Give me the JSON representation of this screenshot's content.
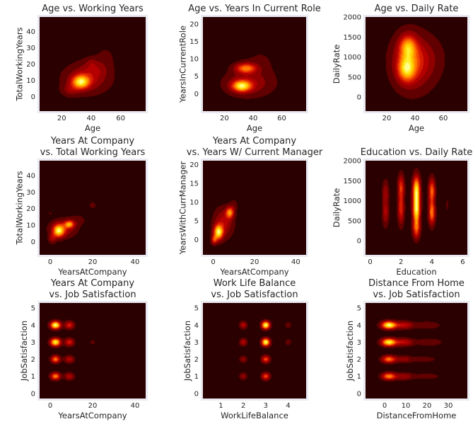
{
  "chart_data": [
    {
      "type": "heatmap",
      "title_lines": [
        "Age vs. Working Years"
      ],
      "xlabel": "Age",
      "ylabel": "TotalWorkingYears",
      "xlim": [
        5,
        77
      ],
      "ylim": [
        -9,
        49
      ],
      "xticks": [
        20,
        40,
        60
      ],
      "yticks": [
        0,
        10,
        20,
        30,
        40
      ],
      "blobs": [
        {
          "x": 33,
          "y": 9,
          "sx": 4,
          "sy": 2.8,
          "w": 1.0
        },
        {
          "x": 37,
          "y": 11,
          "sx": 10,
          "sy": 6,
          "w": 0.35
        },
        {
          "x": 43,
          "y": 17,
          "sx": 6,
          "sy": 4,
          "w": 0.18
        },
        {
          "x": 40,
          "y": 21,
          "sx": 2.5,
          "sy": 2,
          "w": 0.12
        },
        {
          "x": 50,
          "y": 25,
          "sx": 5,
          "sy": 5,
          "w": 0.08
        },
        {
          "x": 26,
          "y": 4,
          "sx": 4,
          "sy": 2.5,
          "w": 0.22
        }
      ]
    },
    {
      "type": "heatmap",
      "title_lines": [
        "Age vs. Years In Current Role"
      ],
      "xlabel": "Age",
      "ylabel": "YearsInCurrentRole",
      "xlim": [
        5,
        77
      ],
      "ylim": [
        -5,
        22
      ],
      "xticks": [
        20,
        40,
        60
      ],
      "yticks": [
        0,
        5,
        10,
        15,
        20
      ],
      "blobs": [
        {
          "x": 32,
          "y": 2.2,
          "sx": 4.5,
          "sy": 1.1,
          "w": 1.0
        },
        {
          "x": 35,
          "y": 7.3,
          "sx": 5,
          "sy": 1.0,
          "w": 0.72
        },
        {
          "x": 37,
          "y": 3,
          "sx": 11,
          "sy": 2.5,
          "w": 0.3
        },
        {
          "x": 45,
          "y": 9,
          "sx": 8,
          "sy": 3,
          "w": 0.08
        }
      ]
    },
    {
      "type": "heatmap",
      "title_lines": [
        "Age vs. Daily Rate"
      ],
      "xlabel": "Age",
      "ylabel": "DailyRate",
      "xlim": [
        5,
        77
      ],
      "ylim": [
        -350,
        2000
      ],
      "xticks": [
        20,
        40,
        60
      ],
      "yticks": [
        0,
        500,
        1000,
        1500,
        2000
      ],
      "blobs": [
        {
          "x": 34,
          "y": 700,
          "sx": 4,
          "sy": 200,
          "w": 1.0
        },
        {
          "x": 35,
          "y": 1250,
          "sx": 4,
          "sy": 200,
          "w": 0.9
        },
        {
          "x": 36,
          "y": 900,
          "sx": 8,
          "sy": 420,
          "w": 0.6
        },
        {
          "x": 42,
          "y": 800,
          "sx": 10,
          "sy": 450,
          "w": 0.25
        },
        {
          "x": 50,
          "y": 1000,
          "sx": 8,
          "sy": 350,
          "w": 0.12
        }
      ]
    },
    {
      "type": "heatmap",
      "title_lines": [
        "Years At Company",
        "vs. Total Working Years"
      ],
      "xlabel": "YearsAtCompany",
      "ylabel": "TotalWorkingYears",
      "xlim": [
        -5,
        45
      ],
      "ylim": [
        -8,
        49
      ],
      "xticks": [
        0,
        20,
        40
      ],
      "yticks": [
        0,
        10,
        20,
        30,
        40
      ],
      "blobs": [
        {
          "x": 4,
          "y": 6.5,
          "sx": 1.8,
          "sy": 2.5,
          "w": 1.0
        },
        {
          "x": 9,
          "y": 10.5,
          "sx": 1.6,
          "sy": 1.5,
          "w": 0.75
        },
        {
          "x": 6,
          "y": 8,
          "sx": 4,
          "sy": 3.5,
          "w": 0.35
        },
        {
          "x": 1,
          "y": 2,
          "sx": 1.2,
          "sy": 2,
          "w": 0.3
        },
        {
          "x": 20,
          "y": 22,
          "sx": 1.2,
          "sy": 1.3,
          "w": 0.14
        },
        {
          "x": 0,
          "y": 17,
          "sx": 0.8,
          "sy": 0.8,
          "w": 0.08
        },
        {
          "x": 13,
          "y": 13,
          "sx": 3,
          "sy": 2.5,
          "w": 0.1
        }
      ]
    },
    {
      "type": "heatmap",
      "title_lines": [
        "Years At Company",
        "vs. Years W/ Current Manager"
      ],
      "xlabel": "YearsAtCompany",
      "ylabel": "YearsWithCurrManager",
      "xlim": [
        -5,
        45
      ],
      "ylim": [
        -4,
        21
      ],
      "xticks": [
        0,
        20,
        40
      ],
      "yticks": [
        0,
        5,
        10,
        15,
        20
      ],
      "blobs": [
        {
          "x": 2.5,
          "y": 2,
          "sx": 1.5,
          "sy": 1.3,
          "w": 1.0
        },
        {
          "x": 8,
          "y": 7.2,
          "sx": 1.3,
          "sy": 1.0,
          "w": 0.7
        },
        {
          "x": 5,
          "y": 4.5,
          "sx": 3,
          "sy": 2.5,
          "w": 0.35
        },
        {
          "x": 0.5,
          "y": 0,
          "sx": 1,
          "sy": 0.8,
          "w": 0.5
        },
        {
          "x": 10,
          "y": 9,
          "sx": 1.2,
          "sy": 1.2,
          "w": 0.12
        }
      ]
    },
    {
      "type": "heatmap",
      "title_lines": [
        "Education vs. Daily Rate"
      ],
      "xlabel": "Education",
      "ylabel": "DailyRate",
      "xlim": [
        -0.3,
        6.3
      ],
      "ylim": [
        -350,
        2000
      ],
      "xticks": [
        0,
        2,
        4,
        6
      ],
      "yticks": [
        0,
        500,
        1000,
        1500,
        2000
      ],
      "blobs": [
        {
          "x": 3,
          "y": 800,
          "sx": 0.16,
          "sy": 250,
          "w": 1.0
        },
        {
          "x": 3,
          "y": 1300,
          "sx": 0.16,
          "sy": 220,
          "w": 0.85
        },
        {
          "x": 3,
          "y": 300,
          "sx": 0.16,
          "sy": 170,
          "w": 0.5
        },
        {
          "x": 4,
          "y": 700,
          "sx": 0.14,
          "sy": 200,
          "w": 0.65
        },
        {
          "x": 4,
          "y": 1250,
          "sx": 0.14,
          "sy": 200,
          "w": 0.6
        },
        {
          "x": 2,
          "y": 800,
          "sx": 0.14,
          "sy": 260,
          "w": 0.45
        },
        {
          "x": 2,
          "y": 1350,
          "sx": 0.14,
          "sy": 200,
          "w": 0.45
        },
        {
          "x": 1,
          "y": 700,
          "sx": 0.14,
          "sy": 220,
          "w": 0.28
        },
        {
          "x": 1,
          "y": 1200,
          "sx": 0.14,
          "sy": 200,
          "w": 0.25
        },
        {
          "x": 5,
          "y": 900,
          "sx": 0.12,
          "sy": 280,
          "w": 0.06
        }
      ]
    },
    {
      "type": "heatmap",
      "title_lines": [
        "Years At Company",
        "vs. Job Satisfaction"
      ],
      "xlabel": "YearsAtCompany",
      "ylabel": "JobSatisfaction",
      "xlim": [
        -5,
        45
      ],
      "ylim": [
        -0.3,
        5.3
      ],
      "xticks": [
        0,
        20,
        40
      ],
      "yticks": [
        0,
        1,
        2,
        3,
        4,
        5
      ],
      "blobs": [
        {
          "x": 2.5,
          "y": 4,
          "sx": 1.6,
          "sy": 0.15,
          "w": 1.0
        },
        {
          "x": 2.5,
          "y": 3,
          "sx": 1.6,
          "sy": 0.15,
          "w": 0.95
        },
        {
          "x": 2.5,
          "y": 2,
          "sx": 1.4,
          "sy": 0.14,
          "w": 0.6
        },
        {
          "x": 2.5,
          "y": 1,
          "sx": 1.5,
          "sy": 0.14,
          "w": 0.65
        },
        {
          "x": 9,
          "y": 4,
          "sx": 1.5,
          "sy": 0.15,
          "w": 0.4
        },
        {
          "x": 9,
          "y": 3,
          "sx": 1.5,
          "sy": 0.15,
          "w": 0.4
        },
        {
          "x": 9,
          "y": 2,
          "sx": 1.5,
          "sy": 0.14,
          "w": 0.3
        },
        {
          "x": 9,
          "y": 1,
          "sx": 1.5,
          "sy": 0.14,
          "w": 0.3
        },
        {
          "x": 20,
          "y": 3,
          "sx": 1,
          "sy": 0.12,
          "w": 0.08
        },
        {
          "x": 21,
          "y": 4,
          "sx": 0.6,
          "sy": 0.1,
          "w": 0.04
        }
      ]
    },
    {
      "type": "heatmap",
      "title_lines": [
        "Work Life Balance",
        "vs. Job Satisfaction"
      ],
      "xlabel": "WorkLifeBalance",
      "ylabel": "JobSatisfaction",
      "xlim": [
        0.2,
        4.8
      ],
      "ylim": [
        -0.3,
        5.3
      ],
      "xticks": [
        1,
        2,
        3,
        4
      ],
      "yticks": [
        0,
        1,
        2,
        3,
        4,
        5
      ],
      "blobs": [
        {
          "x": 3,
          "y": 4,
          "sx": 0.12,
          "sy": 0.15,
          "w": 1.0
        },
        {
          "x": 3,
          "y": 3,
          "sx": 0.12,
          "sy": 0.15,
          "w": 1.0
        },
        {
          "x": 3,
          "y": 2,
          "sx": 0.12,
          "sy": 0.14,
          "w": 0.5
        },
        {
          "x": 3,
          "y": 1,
          "sx": 0.12,
          "sy": 0.14,
          "w": 0.5
        },
        {
          "x": 2,
          "y": 4,
          "sx": 0.11,
          "sy": 0.14,
          "w": 0.3
        },
        {
          "x": 2,
          "y": 3,
          "sx": 0.11,
          "sy": 0.14,
          "w": 0.3
        },
        {
          "x": 2,
          "y": 2,
          "sx": 0.11,
          "sy": 0.13,
          "w": 0.2
        },
        {
          "x": 2,
          "y": 1,
          "sx": 0.11,
          "sy": 0.13,
          "w": 0.22
        },
        {
          "x": 4,
          "y": 4,
          "sx": 0.1,
          "sy": 0.13,
          "w": 0.12
        },
        {
          "x": 4,
          "y": 3,
          "sx": 0.1,
          "sy": 0.13,
          "w": 0.12
        },
        {
          "x": 4,
          "y": 1,
          "sx": 0.05,
          "sy": 0.07,
          "w": 0.05
        },
        {
          "x": 4,
          "y": 2,
          "sx": 0.05,
          "sy": 0.07,
          "w": 0.05
        }
      ]
    },
    {
      "type": "heatmap",
      "title_lines": [
        "Distance From Home",
        "vs. Job Satisfaction"
      ],
      "xlabel": "DistanceFromHome",
      "ylabel": "JobSatisfaction",
      "xlim": [
        -9,
        39
      ],
      "ylim": [
        -0.3,
        5.3
      ],
      "xticks": [
        0,
        10,
        20,
        30
      ],
      "yticks": [
        0,
        1,
        2,
        3,
        4,
        5
      ],
      "blobs": [
        {
          "x": 2,
          "y": 4,
          "sx": 2.3,
          "sy": 0.15,
          "w": 1.0
        },
        {
          "x": 2,
          "y": 3,
          "sx": 2.3,
          "sy": 0.15,
          "w": 0.95
        },
        {
          "x": 2,
          "y": 2,
          "sx": 2.2,
          "sy": 0.14,
          "w": 0.6
        },
        {
          "x": 2,
          "y": 1,
          "sx": 2.2,
          "sy": 0.14,
          "w": 0.65
        },
        {
          "x": 9,
          "y": 4,
          "sx": 3,
          "sy": 0.15,
          "w": 0.35
        },
        {
          "x": 9,
          "y": 3,
          "sx": 3,
          "sy": 0.15,
          "w": 0.35
        },
        {
          "x": 9,
          "y": 1,
          "sx": 3,
          "sy": 0.14,
          "w": 0.25
        },
        {
          "x": 9,
          "y": 2,
          "sx": 3,
          "sy": 0.14,
          "w": 0.2
        },
        {
          "x": 20,
          "y": 4,
          "sx": 4,
          "sy": 0.14,
          "w": 0.15
        },
        {
          "x": 21,
          "y": 3,
          "sx": 4,
          "sy": 0.14,
          "w": 0.15
        },
        {
          "x": 20,
          "y": 1,
          "sx": 4,
          "sy": 0.12,
          "w": 0.12
        },
        {
          "x": 19,
          "y": 2,
          "sx": 4,
          "sy": 0.12,
          "w": 0.1
        }
      ]
    }
  ],
  "style": {
    "levels": [
      0.05,
      0.15,
      0.25,
      0.35,
      0.45,
      0.55,
      0.65,
      0.75,
      0.85,
      0.95
    ],
    "palette": [
      "#2b0000",
      "#600000",
      "#900000",
      "#b40000",
      "#d81c00",
      "#f24500",
      "#ff7800",
      "#ffa400",
      "#ffd000",
      "#ffef30",
      "#ffff90"
    ],
    "axes_bg": "#2b0000",
    "frame": "#eaeaf2",
    "text": "#262626"
  }
}
